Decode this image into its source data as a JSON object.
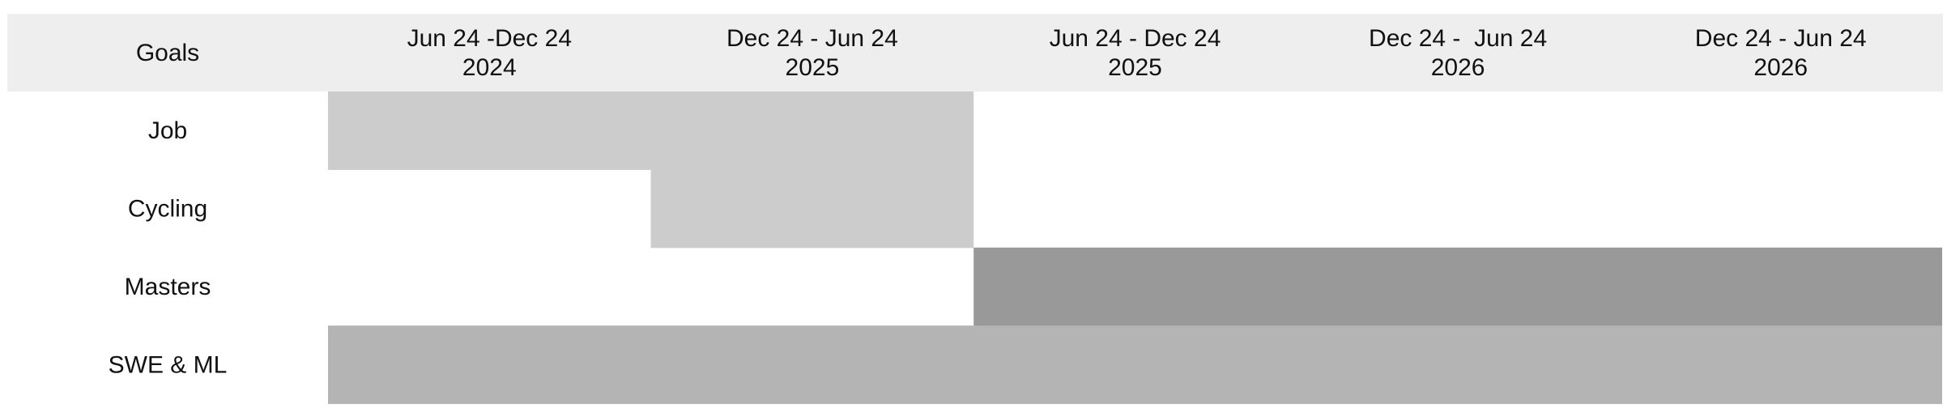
{
  "chart_data": {
    "type": "gantt",
    "header_label": "Goals",
    "periods": [
      {
        "line1": "Jun 24 -Dec 24",
        "line2": "2024"
      },
      {
        "line1": "Dec 24 - Jun 24",
        "line2": "2025"
      },
      {
        "line1": "Jun 24 - Dec 24",
        "line2": "2025"
      },
      {
        "line1": "Dec 24 -  Jun 24",
        "line2": "2026"
      },
      {
        "line1": "Dec 24 - Jun 24",
        "line2": "2026"
      }
    ],
    "tasks": [
      {
        "name": "Job",
        "start_period": 0,
        "end_period": 2,
        "color": "#cccccc"
      },
      {
        "name": "Cycling",
        "start_period": 1,
        "end_period": 2,
        "color": "#cccccc"
      },
      {
        "name": "Masters",
        "start_period": 2,
        "end_period": 5,
        "color": "#999999"
      },
      {
        "name": "SWE & ML",
        "start_period": 0,
        "end_period": 5,
        "color": "#b4b4b4"
      }
    ],
    "header_color": "#eeeeee"
  }
}
